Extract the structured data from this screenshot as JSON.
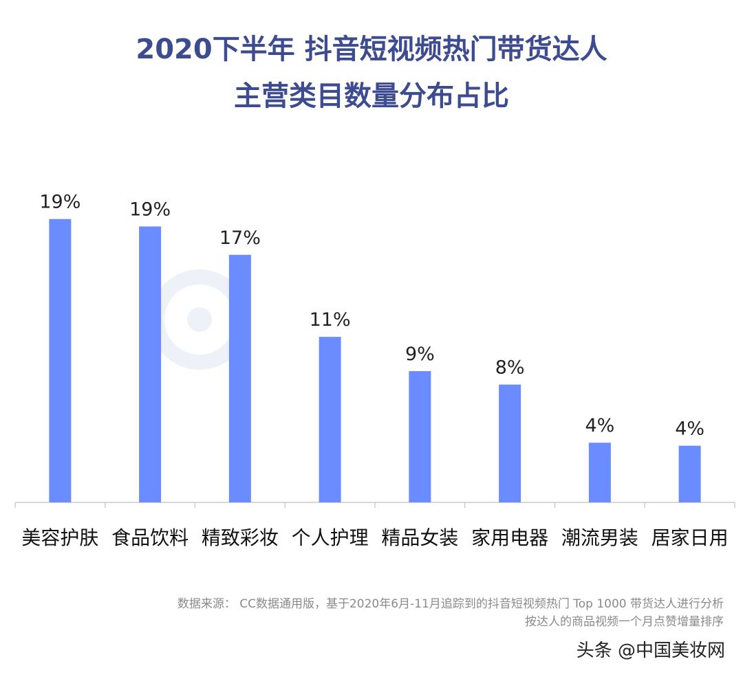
{
  "title_line1": "2020下半年 抖音短视频热门带货达人",
  "title_line2": "主营类目数量分布占比",
  "watermark": "CC数据",
  "colors": {
    "bar": "#6b8cff",
    "title": "#3d4b8f",
    "axis": "#cccccc"
  },
  "chart_data": {
    "type": "bar",
    "title": "2020下半年 抖音短视频热门带货达人 主营类目数量分布占比",
    "categories": [
      "美容护肤",
      "食品饮料",
      "精致彩妆",
      "个人护理",
      "精品女装",
      "家用电器",
      "潮流男装",
      "居家日用"
    ],
    "values": [
      19.0,
      18.5,
      16.6,
      11.1,
      8.8,
      7.9,
      4.0,
      3.8
    ],
    "data_labels": [
      "19%",
      "19%",
      "17%",
      "11%",
      "9%",
      "8%",
      "4%",
      "4%"
    ],
    "xlabel": "",
    "ylabel": "",
    "ylim": [
      0,
      20
    ],
    "grid": false
  },
  "source_line1": "数据来源： CC数据通用版，基于2020年6月-11月追踪到的抖音短视频热门 Top 1000 带货达人进行分析",
  "source_line2": "按达人的商品视频一个月点赞增量排序",
  "credit": "头条 @中国美妆网"
}
